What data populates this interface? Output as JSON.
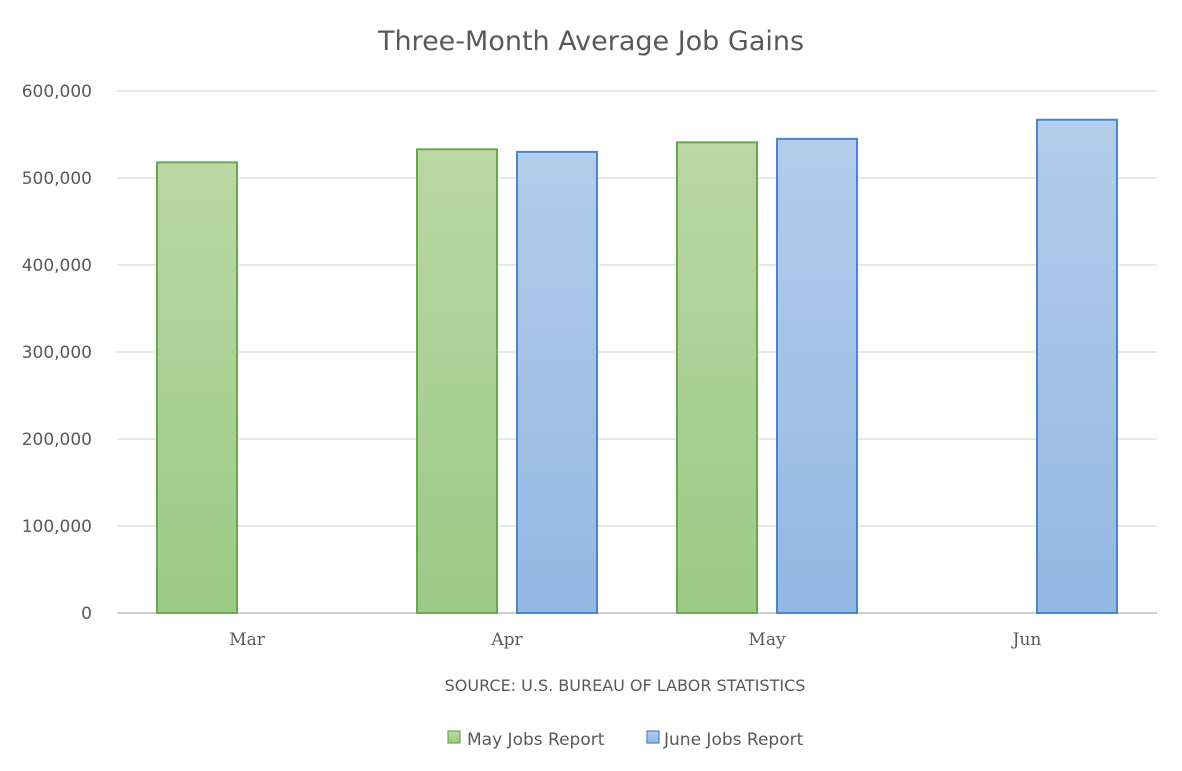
{
  "chart_data": {
    "type": "bar",
    "title": "Three-Month Average Job Gains",
    "categories": [
      "Mar",
      "Apr",
      "May",
      "Jun"
    ],
    "series": [
      {
        "name": "May Jobs Report",
        "values": [
          518000,
          533000,
          541000,
          null
        ]
      },
      {
        "name": "June Jobs Report",
        "values": [
          null,
          530000,
          545000,
          567000
        ]
      }
    ],
    "ylim": [
      0,
      600000
    ],
    "yticks": [
      "0",
      "100,000",
      "200,000",
      "300,000",
      "400,000",
      "500,000",
      "600,000"
    ],
    "ytick_values": [
      0,
      100000,
      200000,
      300000,
      400000,
      500000,
      600000
    ],
    "grid": true,
    "source": "SOURCE: U.S. BUREAU OF LABOR STATISTICS",
    "legend_position": "bottom"
  },
  "colors": {
    "may_fill_top": "#b9d8a4",
    "may_fill_bottom": "#9cc985",
    "may_stroke": "#6aa84f",
    "june_fill_top": "#b3cdea",
    "june_fill_bottom": "#93b7e3",
    "june_stroke": "#4a86c8",
    "grid": "#d9d9d9",
    "text": "#595959"
  }
}
